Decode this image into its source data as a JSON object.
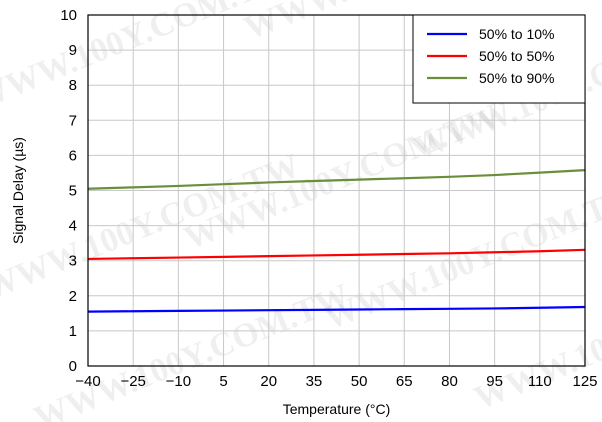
{
  "chart_data": {
    "type": "line",
    "xlabel": "Temperature (°C)",
    "ylabel": "Signal Delay (µs)",
    "xlim": [
      -40,
      125
    ],
    "ylim": [
      0,
      10
    ],
    "xticks": [
      -40,
      -25,
      -10,
      5,
      20,
      35,
      50,
      65,
      80,
      95,
      110,
      125
    ],
    "xtick_labels": [
      "−40",
      "−25",
      "−10",
      "5",
      "20",
      "35",
      "50",
      "65",
      "80",
      "95",
      "110",
      "125"
    ],
    "yticks": [
      0,
      1,
      2,
      3,
      4,
      5,
      6,
      7,
      8,
      9,
      10
    ],
    "ytick_labels": [
      "0",
      "1",
      "2",
      "3",
      "4",
      "5",
      "6",
      "7",
      "8",
      "9",
      "10"
    ],
    "grid": true,
    "legend_position": "top-right",
    "series": [
      {
        "name": "50% to 10%",
        "color": "#0000ff",
        "x": [
          -40,
          -25,
          -10,
          5,
          20,
          35,
          50,
          65,
          80,
          95,
          110,
          125
        ],
        "values": [
          1.55,
          1.56,
          1.57,
          1.58,
          1.59,
          1.6,
          1.61,
          1.62,
          1.63,
          1.64,
          1.66,
          1.68
        ]
      },
      {
        "name": "50% to 50%",
        "color": "#ff0000",
        "x": [
          -40,
          -25,
          -10,
          5,
          20,
          35,
          50,
          65,
          80,
          95,
          110,
          125
        ],
        "values": [
          3.05,
          3.07,
          3.09,
          3.11,
          3.13,
          3.15,
          3.17,
          3.19,
          3.21,
          3.24,
          3.27,
          3.31
        ]
      },
      {
        "name": "50% to 90%",
        "color": "#6b8e3a",
        "x": [
          -40,
          -25,
          -10,
          5,
          20,
          35,
          50,
          65,
          80,
          95,
          110,
          125
        ],
        "values": [
          5.05,
          5.09,
          5.13,
          5.18,
          5.23,
          5.27,
          5.31,
          5.35,
          5.39,
          5.44,
          5.51,
          5.58
        ]
      }
    ]
  },
  "watermark": "WWW.100Y.COM.TW"
}
